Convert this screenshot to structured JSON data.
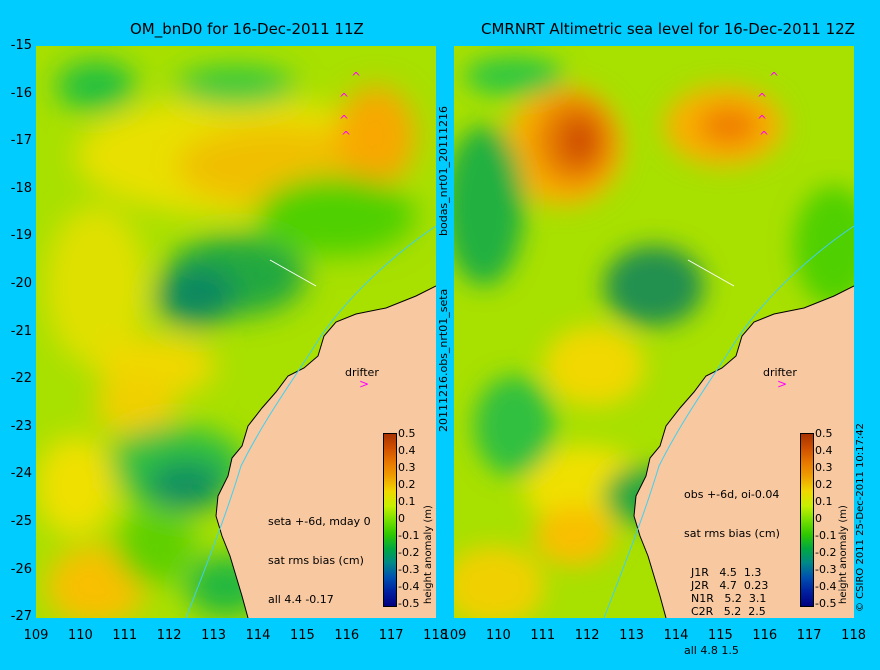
{
  "left_panel": {
    "title": "OM_bnD0 for 16-Dec-2011 11Z",
    "drifter_label": "drifter",
    "stats": {
      "line1": "seta +-6d, mday 0",
      "line2": "sat rms bias (cm)",
      "line3": "all 4.4 -0.17"
    },
    "colorbar_title": "height anomaly (m)"
  },
  "right_panel": {
    "title": "CMRNRT Altimetric sea level  for 16-Dec-2011 12Z",
    "drifter_label": "drifter",
    "stats": {
      "line1": "obs +-6d, oi-0.04",
      "line2": "sat rms bias (cm)",
      "rows": [
        {
          "sat": "J1R",
          "rms": "4.5",
          "bias": "1.3"
        },
        {
          "sat": "J2R",
          "rms": "4.7",
          "bias": "0.23"
        },
        {
          "sat": "N1R",
          "rms": "5.2",
          "bias": "3.1"
        },
        {
          "sat": "C2R",
          "rms": "5.2",
          "bias": "2.5"
        }
      ],
      "all_line": "all 4.8 1.5"
    },
    "colorbar_title": "height anomaly (m)"
  },
  "middle_labels": {
    "top": "bodas_nrt01_20111216",
    "bottom": "20111216.obs_nrt01_seta"
  },
  "credit": "© CSIRO 2011  25-Dec-2011 10:17:42",
  "lat_ticks": [
    "-15",
    "-16",
    "-17",
    "-18",
    "-19",
    "-20",
    "-21",
    "-22",
    "-23",
    "-24",
    "-25",
    "-26",
    "-27"
  ],
  "lon_ticks": [
    "109",
    "110",
    "111",
    "112",
    "113",
    "114",
    "115",
    "116",
    "117",
    "118"
  ],
  "colorbar_ticks": [
    "0.5",
    "0.4",
    "0.3",
    "0.2",
    "0.1",
    "0",
    "-0.1",
    "-0.2",
    "-0.3",
    "-0.4",
    "-0.5"
  ],
  "colors": {
    "background": "#00ccff",
    "land": "#f8c8a0",
    "drifter_marker": "#ff00ff",
    "colorbar": [
      "#ffffff",
      "#a83200",
      "#d05000",
      "#e87800",
      "#f0a000",
      "#f0d800",
      "#c8f000",
      "#78e000",
      "#30c800",
      "#00a840",
      "#008888",
      "#0050b0",
      "#0020a0",
      "#000080"
    ]
  }
}
